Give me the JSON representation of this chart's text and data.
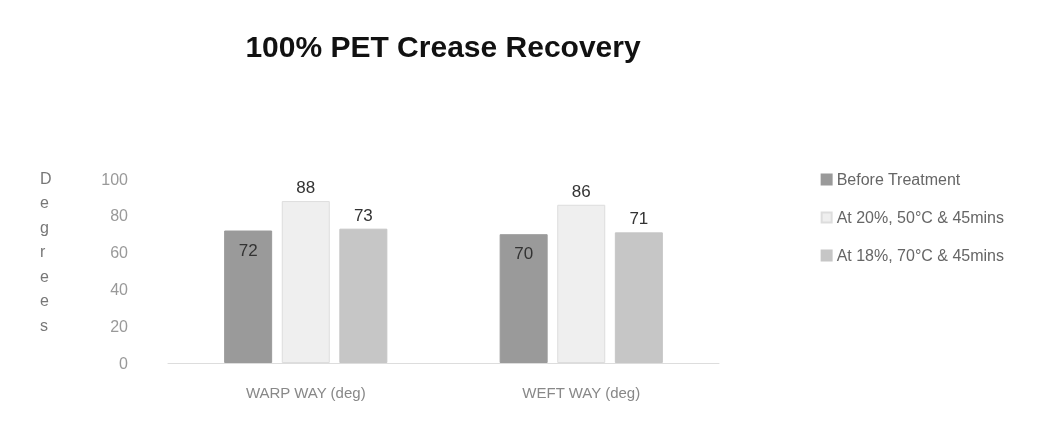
{
  "chart_data": {
    "type": "bar",
    "title": "100% PET Crease Recovery",
    "ylabel": "Degrees",
    "categories": [
      "WARP WAY (deg)",
      "WEFT WAY (deg)"
    ],
    "series": [
      {
        "name": "Before Treatment",
        "color": "#9a9a9a",
        "values": [
          72,
          70
        ]
      },
      {
        "name": "At 20%, 50°C & 45mins",
        "color": "#efefef",
        "values": [
          88,
          86
        ]
      },
      {
        "name": "At 18%, 70°C & 45mins",
        "color": "#c6c6c6",
        "values": [
          73,
          71
        ]
      }
    ],
    "ylim": [
      0,
      100
    ],
    "yticks": [
      0,
      20,
      40,
      60,
      80,
      100
    ],
    "grid": false,
    "legend": "right",
    "data_labels": true
  }
}
